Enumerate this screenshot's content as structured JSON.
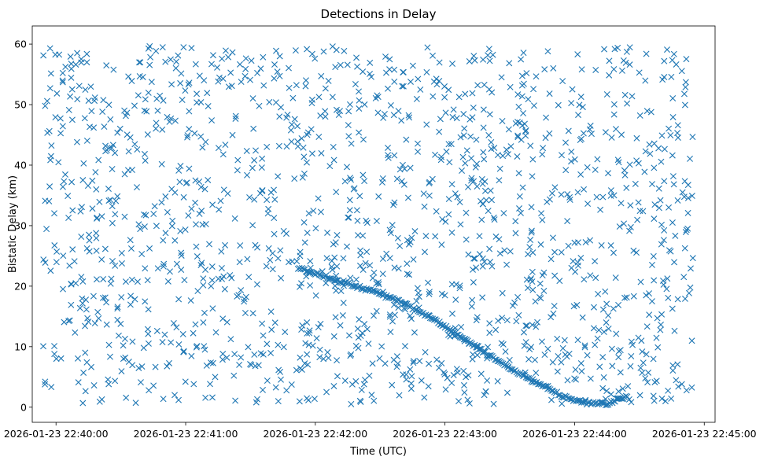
{
  "chart_data": {
    "type": "scatter",
    "title": "Detections in Delay",
    "xlabel": "Time (UTC)",
    "ylabel": "Bistatic Delay (km)",
    "marker": "x",
    "color": "#1f77b4",
    "grid": false,
    "legend": "none",
    "xlim": [
      "2026-01-23 22:39:49",
      "2026-01-23 22:45:05"
    ],
    "ylim": [
      -2.5,
      63
    ],
    "xticks": [
      "2026-01-23 22:40:00",
      "2026-01-23 22:41:00",
      "2026-01-23 22:42:00",
      "2026-01-23 22:43:00",
      "2026-01-23 22:44:00",
      "2026-01-23 22:45:00"
    ],
    "yticks": [
      0,
      10,
      20,
      30,
      40,
      50,
      60
    ],
    "track": {
      "x": [
        "2026-01-23 22:41:52",
        "2026-01-23 22:42:10",
        "2026-01-23 22:42:25",
        "2026-01-23 22:42:40",
        "2026-01-23 22:42:55",
        "2026-01-23 22:43:10",
        "2026-01-23 22:43:25",
        "2026-01-23 22:43:40",
        "2026-01-23 22:43:55",
        "2026-01-23 22:44:05",
        "2026-01-23 22:44:15",
        "2026-01-23 22:44:25"
      ],
      "y": [
        23,
        21,
        19.3,
        17.3,
        14.5,
        11,
        7.5,
        4.5,
        1.7,
        0.7,
        0.5,
        2
      ]
    },
    "scatter_x_range": [
      "2026-01-23 22:39:54",
      "2026-01-23 22:44:55"
    ],
    "scatter_y_range": [
      0.5,
      60
    ],
    "scatter_count": 1500
  }
}
